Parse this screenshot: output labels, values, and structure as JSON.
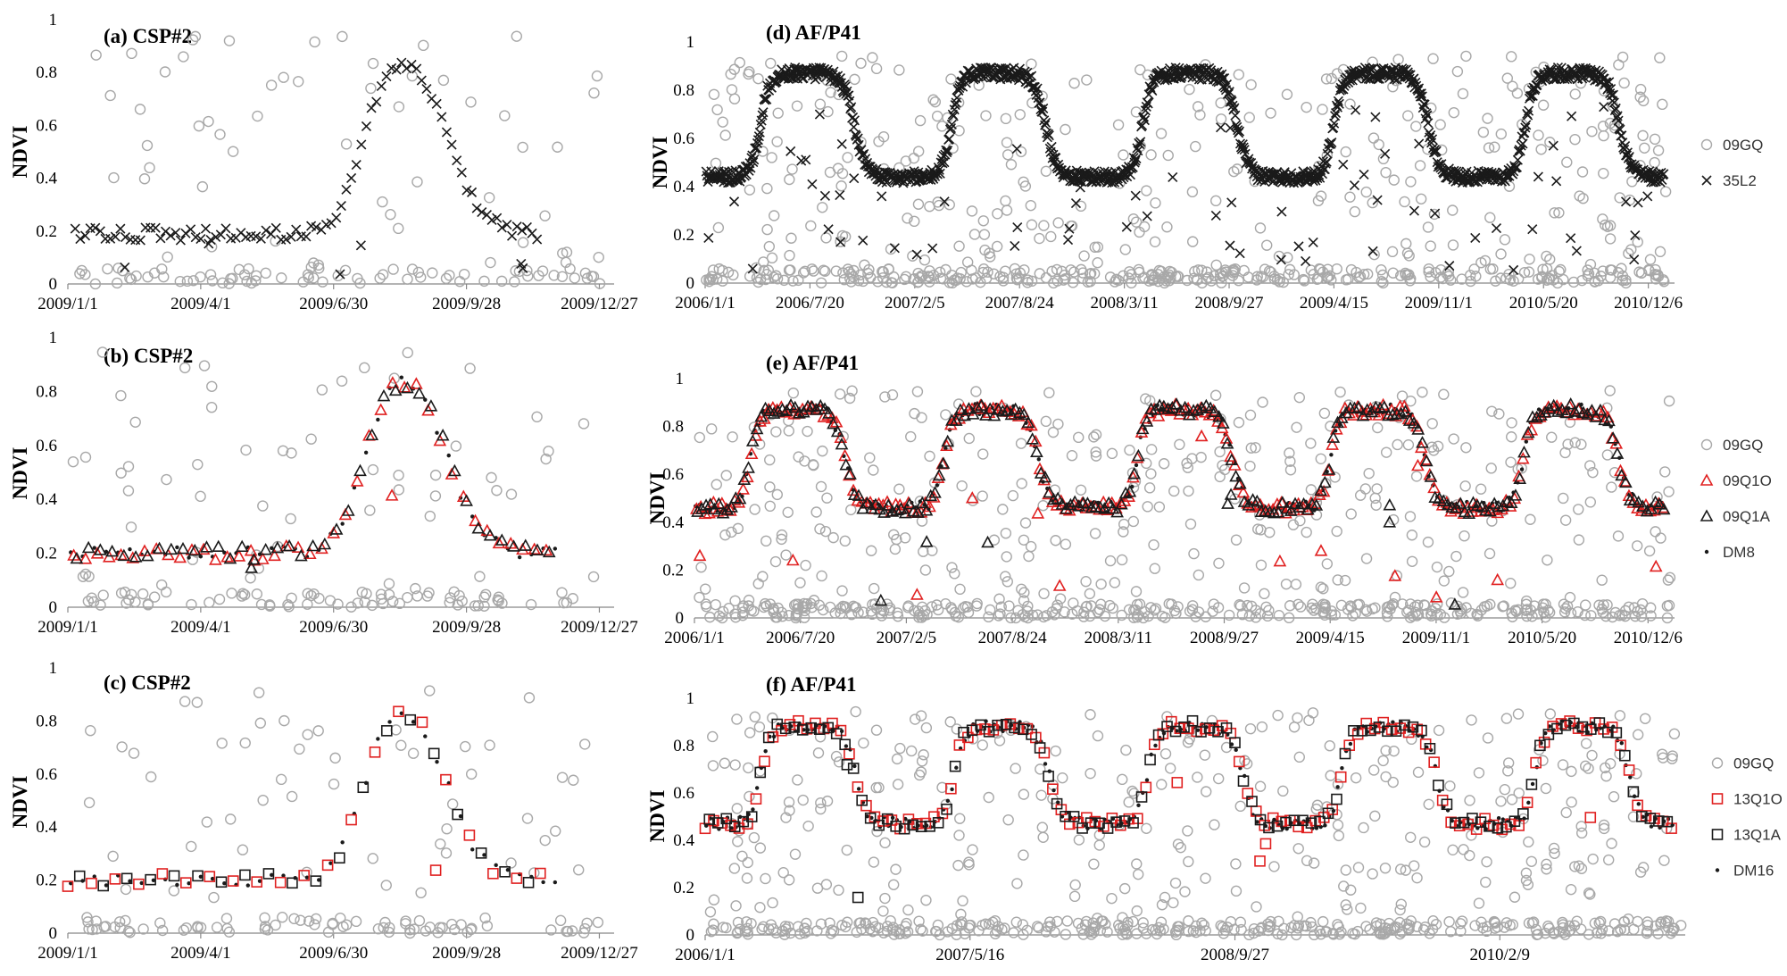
{
  "figure": {
    "colors": {
      "grey": "#a8a8a8",
      "black": "#1a1a1a",
      "red": "#e02020"
    },
    "symbols": {
      "circle": "○",
      "cross": "×",
      "triangle": "△",
      "square": "□",
      "dot": "•"
    }
  },
  "chart_data": [
    {
      "id": "a",
      "type": "scatter",
      "title": "(a) CSP#2",
      "ylabel": "NDVI",
      "xlim": [
        0,
        370
      ],
      "ylim": [
        0,
        1
      ],
      "yticks": [
        "0",
        "0.2",
        "0.4",
        "0.6",
        "0.8",
        "1"
      ],
      "xticks": [
        {
          "label": "2009/1/1",
          "x": 0
        },
        {
          "label": "2009/4/1",
          "x": 90
        },
        {
          "label": "2009/6/30",
          "x": 180
        },
        {
          "label": "2009/9/28",
          "x": 270
        },
        {
          "label": "2009/12/27",
          "x": 360
        }
      ],
      "legend": [],
      "series": [
        {
          "name": "09GQ",
          "kind": "background",
          "symbol": "circle",
          "color": "grey",
          "n": 130,
          "seed": 11,
          "period": 365,
          "phase": 0,
          "dense_count": 70
        },
        {
          "name": "35L2",
          "kind": "curve",
          "symbol": "cross",
          "color": "black",
          "step": 3.4,
          "start": 5,
          "end": 318,
          "seed": 12,
          "phase": 0,
          "period": 365,
          "rise": 200,
          "fall": 258,
          "low": 0.19,
          "high": 0.9,
          "outliers": 6
        }
      ]
    },
    {
      "id": "b",
      "type": "scatter",
      "title": "(b) CSP#2",
      "ylabel": "NDVI",
      "xlim": [
        0,
        370
      ],
      "ylim": [
        0,
        1
      ],
      "yticks": [
        "0",
        "0.2",
        "0.4",
        "0.6",
        "0.8",
        "1"
      ],
      "xticks": [
        {
          "label": "2009/1/1",
          "x": 0
        },
        {
          "label": "2009/4/1",
          "x": 90
        },
        {
          "label": "2009/6/30",
          "x": 180
        },
        {
          "label": "2009/9/28",
          "x": 270
        },
        {
          "label": "2009/12/27",
          "x": 360
        }
      ],
      "legend": [],
      "series": [
        {
          "name": "09GQ",
          "kind": "background",
          "symbol": "circle",
          "color": "grey",
          "n": 130,
          "seed": 21,
          "period": 365,
          "phase": 0,
          "dense_count": 70
        },
        {
          "name": "DM8",
          "kind": "curve",
          "symbol": "dot",
          "color": "black",
          "step": 8,
          "start": 2,
          "end": 330,
          "seed": 22,
          "phase": 0,
          "period": 365,
          "rise": 200,
          "fall": 258,
          "low": 0.2,
          "high": 0.9,
          "outliers": 0
        },
        {
          "name": "09Q1O",
          "kind": "curve",
          "symbol": "triangle",
          "color": "red",
          "step": 8,
          "start": 4,
          "end": 326,
          "seed": 23,
          "phase": 0,
          "period": 365,
          "rise": 200,
          "fall": 258,
          "low": 0.2,
          "high": 0.9,
          "outliers": 2
        },
        {
          "name": "09Q1A",
          "kind": "curve",
          "symbol": "triangle",
          "color": "black",
          "step": 8,
          "start": 6,
          "end": 326,
          "seed": 24,
          "phase": 0,
          "period": 365,
          "rise": 200,
          "fall": 258,
          "low": 0.2,
          "high": 0.9,
          "outliers": 1
        }
      ]
    },
    {
      "id": "c",
      "type": "scatter",
      "title": "(c)  CSP#2",
      "ylabel": "NDVI",
      "xlim": [
        0,
        370
      ],
      "ylim": [
        0,
        1
      ],
      "yticks": [
        "0",
        "0.2",
        "0.4",
        "0.6",
        "0.8",
        "1"
      ],
      "xticks": [
        {
          "label": "2009/1/1",
          "x": 0
        },
        {
          "label": "2009/4/1",
          "x": 90
        },
        {
          "label": "2009/6/30",
          "x": 180
        },
        {
          "label": "2009/9/28",
          "x": 270
        },
        {
          "label": "2009/12/27",
          "x": 360
        }
      ],
      "legend": [],
      "series": [
        {
          "name": "09GQ",
          "kind": "background",
          "symbol": "circle",
          "color": "grey",
          "n": 130,
          "seed": 31,
          "period": 365,
          "phase": 0,
          "dense_count": 70
        },
        {
          "name": "DM16",
          "kind": "curve",
          "symbol": "dot",
          "color": "black",
          "step": 8,
          "start": 2,
          "end": 330,
          "seed": 32,
          "phase": 0,
          "period": 365,
          "rise": 200,
          "fall": 258,
          "low": 0.2,
          "high": 0.9,
          "outliers": 0
        },
        {
          "name": "13Q1O",
          "kind": "curve",
          "symbol": "square",
          "color": "red",
          "step": 16,
          "start": 0,
          "end": 326,
          "seed": 33,
          "phase": 0,
          "period": 365,
          "rise": 200,
          "fall": 258,
          "low": 0.2,
          "high": 0.9,
          "outliers": 1
        },
        {
          "name": "13Q1A",
          "kind": "curve",
          "symbol": "square",
          "color": "black",
          "step": 16,
          "start": 8,
          "end": 326,
          "seed": 34,
          "phase": 0,
          "period": 365,
          "rise": 200,
          "fall": 258,
          "low": 0.2,
          "high": 0.9,
          "outliers": 0
        }
      ]
    },
    {
      "id": "d",
      "type": "scatter",
      "title": "(d)  AF/P41",
      "ylabel": "NDVI",
      "xlim": [
        0,
        1850
      ],
      "ylim": [
        0,
        1
      ],
      "yticks": [
        "0",
        "0.2",
        "0.4",
        "0.6",
        "0.8",
        "1"
      ],
      "xticks": [
        {
          "label": "2006/1/1",
          "x": 0
        },
        {
          "label": "2006/7/20",
          "x": 200
        },
        {
          "label": "2007/2/5",
          "x": 400
        },
        {
          "label": "2007/8/24",
          "x": 600
        },
        {
          "label": "2008/3/11",
          "x": 800
        },
        {
          "label": "2008/9/27",
          "x": 1000
        },
        {
          "label": "2009/4/15",
          "x": 1200
        },
        {
          "label": "2009/11/1",
          "x": 1400
        },
        {
          "label": "2010/5/20",
          "x": 1600
        },
        {
          "label": "2010/12/6",
          "x": 1800
        }
      ],
      "legend": [
        {
          "name": "09GQ",
          "symbol": "circle",
          "color": "grey"
        },
        {
          "name": "35L2",
          "symbol": "cross",
          "color": "black"
        }
      ],
      "series": [
        {
          "name": "09GQ",
          "kind": "background",
          "symbol": "circle",
          "color": "grey",
          "n": 620,
          "seed": 41,
          "period": 365,
          "phase": 0,
          "dense_count": 300
        },
        {
          "name": "35L2",
          "kind": "curve",
          "symbol": "cross",
          "color": "black",
          "step": 1.6,
          "start": 2,
          "end": 1830,
          "seed": 42,
          "phase": 0,
          "period": 365,
          "rise": 105,
          "fall": 285,
          "low": 0.44,
          "high": 0.87,
          "outliers": 70
        }
      ]
    },
    {
      "id": "e",
      "type": "scatter",
      "title": "(e)  AF/P41",
      "ylabel": "NDVI",
      "xlim": [
        0,
        1850
      ],
      "ylim": [
        0,
        1
      ],
      "yticks": [
        "0",
        "0.2",
        "0.4",
        "0.6",
        "0.8",
        "1"
      ],
      "xticks": [
        {
          "label": "2006/1/1",
          "x": 0
        },
        {
          "label": "2006/7/20",
          "x": 200
        },
        {
          "label": "2007/2/5",
          "x": 400
        },
        {
          "label": "2007/8/24",
          "x": 600
        },
        {
          "label": "2008/3/11",
          "x": 800
        },
        {
          "label": "2008/9/27",
          "x": 1000
        },
        {
          "label": "2009/4/15",
          "x": 1200
        },
        {
          "label": "2009/11/1",
          "x": 1400
        },
        {
          "label": "2010/5/20",
          "x": 1600
        },
        {
          "label": "2010/12/6",
          "x": 1800
        }
      ],
      "legend": [
        {
          "name": "09GQ",
          "symbol": "circle",
          "color": "grey"
        },
        {
          "name": "09Q1O",
          "symbol": "triangle",
          "color": "red"
        },
        {
          "name": "09Q1A",
          "symbol": "triangle",
          "color": "black"
        },
        {
          "name": "DM8",
          "symbol": "dot",
          "color": "black"
        }
      ],
      "series": [
        {
          "name": "09GQ",
          "kind": "background",
          "symbol": "circle",
          "color": "grey",
          "n": 620,
          "seed": 51,
          "period": 365,
          "phase": 0,
          "dense_count": 300
        },
        {
          "name": "DM8",
          "kind": "curve",
          "symbol": "dot",
          "color": "black",
          "step": 8,
          "start": 2,
          "end": 1830,
          "seed": 52,
          "phase": 0,
          "period": 365,
          "rise": 105,
          "fall": 285,
          "low": 0.46,
          "high": 0.87,
          "outliers": 0
        },
        {
          "name": "09Q1O",
          "kind": "curve",
          "symbol": "triangle",
          "color": "red",
          "step": 8,
          "start": 4,
          "end": 1830,
          "seed": 53,
          "phase": 0,
          "period": 365,
          "rise": 105,
          "fall": 285,
          "low": 0.46,
          "high": 0.87,
          "outliers": 14
        },
        {
          "name": "09Q1A",
          "kind": "curve",
          "symbol": "triangle",
          "color": "black",
          "step": 8,
          "start": 6,
          "end": 1830,
          "seed": 54,
          "phase": 0,
          "period": 365,
          "rise": 105,
          "fall": 285,
          "low": 0.46,
          "high": 0.87,
          "outliers": 8
        }
      ]
    },
    {
      "id": "f",
      "type": "scatter",
      "title": "(f)  AF/P41",
      "ylabel": "NDVI",
      "xlim": [
        0,
        1850
      ],
      "ylim": [
        0,
        1
      ],
      "yticks": [
        "0",
        "0.2",
        "0.4",
        "0.6",
        "0.8",
        "1"
      ],
      "xticks": [
        {
          "label": "2006/1/1",
          "x": 0
        },
        {
          "label": "2007/5/16",
          "x": 500
        },
        {
          "label": "2008/9/27",
          "x": 1000
        },
        {
          "label": "2010/2/9",
          "x": 1500
        }
      ],
      "legend": [
        {
          "name": "09GQ",
          "symbol": "circle",
          "color": "grey"
        },
        {
          "name": "13Q1O",
          "symbol": "square",
          "color": "red"
        },
        {
          "name": "13Q1A",
          "symbol": "square",
          "color": "black"
        },
        {
          "name": "DM16",
          "symbol": "dot",
          "color": "black"
        }
      ],
      "series": [
        {
          "name": "09GQ",
          "kind": "background",
          "symbol": "circle",
          "color": "grey",
          "n": 620,
          "seed": 61,
          "period": 365,
          "phase": 0,
          "dense_count": 300
        },
        {
          "name": "DM16",
          "kind": "curve",
          "symbol": "dot",
          "color": "black",
          "step": 8,
          "start": 2,
          "end": 1830,
          "seed": 62,
          "phase": 0,
          "period": 365,
          "rise": 105,
          "fall": 285,
          "low": 0.47,
          "high": 0.88,
          "outliers": 0
        },
        {
          "name": "13Q1O",
          "kind": "curve",
          "symbol": "square",
          "color": "red",
          "step": 16,
          "start": 0,
          "end": 1830,
          "seed": 63,
          "phase": 0,
          "period": 365,
          "rise": 105,
          "fall": 285,
          "low": 0.47,
          "high": 0.88,
          "outliers": 4
        },
        {
          "name": "13Q1A",
          "kind": "curve",
          "symbol": "square",
          "color": "black",
          "step": 16,
          "start": 8,
          "end": 1830,
          "seed": 64,
          "phase": 0,
          "period": 365,
          "rise": 105,
          "fall": 285,
          "low": 0.47,
          "high": 0.88,
          "outliers": 2
        }
      ]
    }
  ]
}
